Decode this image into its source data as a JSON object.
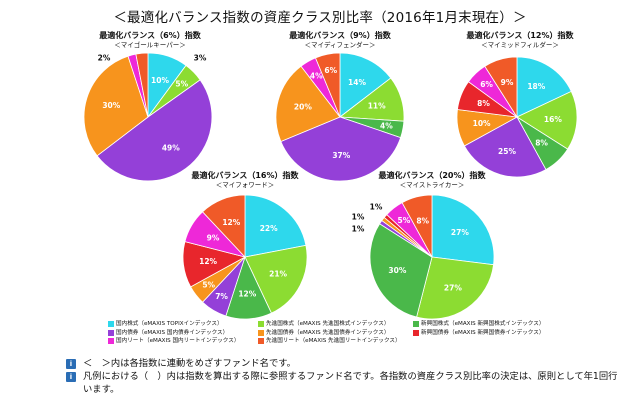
{
  "title": "＜最適化バランス指数の資産クラス別比率（2016年1月末現在）＞",
  "colors": {
    "domestic_stock": "#2ed8ec",
    "developed_stock": "#8cdc32",
    "emerging_stock": "#4ab84a",
    "domestic_bond": "#9440d8",
    "developed_bond": "#f7941d",
    "emerging_bond": "#e8262c",
    "domestic_reit": "#ee28d8",
    "developed_reit": "#f05a28"
  },
  "chart_data": [
    {
      "type": "pie",
      "title": "最適化バランス（6%）指数",
      "subtitle": "＜マイゴールキーパー＞",
      "labels": [
        "国内株式",
        "先進国株式",
        "国内債券",
        "先進国債券",
        "国内リート",
        "先進国リート"
      ],
      "values": [
        10,
        5,
        49,
        30,
        2,
        3
      ],
      "value_labels": [
        "10%",
        "5%",
        "49%",
        "30%",
        "2%",
        "3%"
      ]
    },
    {
      "type": "pie",
      "title": "最適化バランス（9%）指数",
      "subtitle": "＜マイディフェンダー＞",
      "labels": [
        "国内株式",
        "先進国株式",
        "新興国株式",
        "国内債券",
        "先進国債券",
        "国内リート",
        "先進国リート"
      ],
      "values": [
        14,
        11,
        4,
        37,
        20,
        4,
        6
      ],
      "value_labels": [
        "14%",
        "11%",
        "4%",
        "37%",
        "20%",
        "4%",
        "6%"
      ]
    },
    {
      "type": "pie",
      "title": "最適化バランス（12%）指数",
      "subtitle": "＜マイミッドフィルダー＞",
      "labels": [
        "国内株式",
        "先進国株式",
        "新興国株式",
        "国内債券",
        "先進国債券",
        "新興国債券",
        "国内リート",
        "先進国リート"
      ],
      "values": [
        18,
        16,
        8,
        25,
        10,
        8,
        6,
        9
      ],
      "value_labels": [
        "18%",
        "16%",
        "8%",
        "25%",
        "10%",
        "8%",
        "6%",
        "9%"
      ]
    },
    {
      "type": "pie",
      "title": "最適化バランス（16%）指数",
      "subtitle": "＜マイフォワード＞",
      "labels": [
        "国内株式",
        "先進国株式",
        "新興国株式",
        "国内債券",
        "先進国債券",
        "新興国債券",
        "国内リート",
        "先進国リート"
      ],
      "values": [
        22,
        21,
        12,
        7,
        5,
        12,
        9,
        12
      ],
      "value_labels": [
        "22%",
        "21%",
        "12%",
        "7%",
        "5%",
        "12%",
        "9%",
        "12%"
      ]
    },
    {
      "type": "pie",
      "title": "最適化バランス（20%）指数",
      "subtitle": "＜マイストライカー＞",
      "labels": [
        "国内株式",
        "先進国株式",
        "新興国株式",
        "国内債券",
        "先進国債券",
        "新興国債券",
        "国内リート",
        "先進国リート"
      ],
      "values": [
        27,
        27,
        30,
        1,
        1,
        1,
        5,
        8
      ],
      "value_labels": [
        "27%",
        "27%",
        "30%",
        "1%",
        "1%",
        "1%",
        "5%",
        "8%"
      ]
    }
  ],
  "legend": [
    {
      "key": "domestic_stock",
      "label": "国内株式（eMAXIS TOPIXインデックス）"
    },
    {
      "key": "developed_stock",
      "label": "先進国株式（eMAXIS 先進国株式インデックス）"
    },
    {
      "key": "emerging_stock",
      "label": "新興国株式（eMAXIS 新興国株式インデックス）"
    },
    {
      "key": "domestic_bond",
      "label": "国内債券（eMAXIS 国内債券インデックス）"
    },
    {
      "key": "developed_bond",
      "label": "先進国債券（eMAXIS 先進国債券インデックス）"
    },
    {
      "key": "emerging_bond",
      "label": "新興国債券（eMAXIS 新興国債券インデックス）"
    },
    {
      "key": "domestic_reit",
      "label": "国内リート（eMAXIS 国内リートインデックス）"
    },
    {
      "key": "developed_reit",
      "label": "先進国リート（eMAXIS 先進国リートインデックス）"
    }
  ],
  "notes": [
    {
      "icon": "i",
      "text": "＜　＞内は各指数に連動をめざすファンド名です。"
    },
    {
      "icon": "i",
      "text": "凡例における（　）内は指数を算出する際に参照するファンド名です。各指数の資産クラス別比率の決定は、原則として年1回行います。"
    }
  ]
}
